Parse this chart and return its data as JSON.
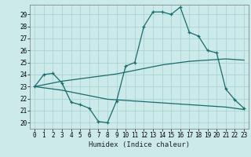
{
  "xlabel": "Humidex (Indice chaleur)",
  "bg_color": "#cceaea",
  "grid_color": "#aad4d4",
  "line_color": "#1a6b6b",
  "xlim": [
    -0.5,
    23.5
  ],
  "ylim": [
    19.5,
    29.8
  ],
  "xticks": [
    0,
    1,
    2,
    3,
    4,
    5,
    6,
    7,
    8,
    9,
    10,
    11,
    12,
    13,
    14,
    15,
    16,
    17,
    18,
    19,
    20,
    21,
    22,
    23
  ],
  "yticks": [
    20,
    21,
    22,
    23,
    24,
    25,
    26,
    27,
    28,
    29
  ],
  "main_x": [
    0,
    1,
    2,
    3,
    4,
    5,
    6,
    7,
    8,
    9,
    10,
    11,
    12,
    13,
    14,
    15,
    16,
    17,
    18,
    19,
    20,
    21,
    22,
    23
  ],
  "main_y": [
    23.0,
    24.0,
    24.1,
    23.3,
    21.7,
    21.5,
    21.2,
    20.1,
    20.0,
    21.8,
    24.7,
    25.0,
    28.0,
    29.2,
    29.2,
    29.0,
    29.6,
    27.5,
    27.2,
    26.0,
    25.8,
    22.8,
    21.9,
    21.2
  ],
  "trend1_x": [
    0,
    1,
    2,
    3,
    4,
    5,
    6,
    7,
    8,
    9,
    10,
    11,
    12,
    13,
    14,
    15,
    16,
    17,
    18,
    19,
    20,
    21,
    22,
    23
  ],
  "trend1_y": [
    23.0,
    23.15,
    23.3,
    23.45,
    23.55,
    23.65,
    23.75,
    23.85,
    23.95,
    24.05,
    24.2,
    24.35,
    24.5,
    24.65,
    24.8,
    24.9,
    25.0,
    25.1,
    25.15,
    25.2,
    25.25,
    25.3,
    25.25,
    25.2
  ],
  "trend2_x": [
    0,
    1,
    2,
    3,
    4,
    5,
    6,
    7,
    8,
    9,
    10,
    11,
    12,
    13,
    14,
    15,
    16,
    17,
    18,
    19,
    20,
    21,
    22,
    23
  ],
  "trend2_y": [
    23.0,
    22.9,
    22.8,
    22.7,
    22.55,
    22.4,
    22.25,
    22.1,
    21.95,
    21.9,
    21.85,
    21.8,
    21.75,
    21.7,
    21.65,
    21.6,
    21.55,
    21.5,
    21.45,
    21.4,
    21.35,
    21.3,
    21.2,
    21.1
  ]
}
